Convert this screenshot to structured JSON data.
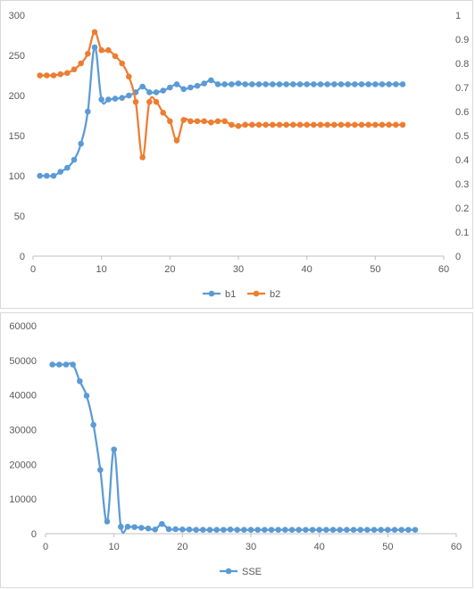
{
  "chart_data": [
    {
      "type": "line",
      "colors": {
        "b1": "#5b9bd5",
        "b2": "#ed7d31"
      },
      "x": [
        1,
        2,
        3,
        4,
        5,
        6,
        7,
        8,
        9,
        10,
        11,
        12,
        13,
        14,
        15,
        16,
        17,
        18,
        19,
        20,
        21,
        22,
        23,
        24,
        25,
        26,
        27,
        28,
        29,
        30,
        31,
        32,
        33,
        34,
        35,
        36,
        37,
        38,
        39,
        40,
        41,
        42,
        43,
        44,
        45,
        46,
        47,
        48,
        49,
        50,
        51,
        52,
        53,
        54
      ],
      "series": [
        {
          "name": "b1",
          "axis": "left",
          "values": [
            100,
            100,
            100,
            105,
            110,
            120,
            140,
            180,
            260,
            195,
            195,
            196,
            197,
            200,
            204,
            211,
            204,
            204,
            206,
            210,
            214,
            208,
            210,
            212,
            215,
            219,
            214,
            214,
            214,
            215,
            214,
            214,
            214,
            214,
            214,
            214,
            214,
            214,
            214,
            214,
            214,
            214,
            214,
            214,
            214,
            214,
            214,
            214,
            214,
            214,
            214,
            214,
            214,
            214
          ]
        },
        {
          "name": "b2",
          "axis": "right",
          "values": [
            0.75,
            0.75,
            0.75,
            0.755,
            0.76,
            0.775,
            0.8,
            0.84,
            0.93,
            0.855,
            0.855,
            0.83,
            0.8,
            0.745,
            0.64,
            0.41,
            0.64,
            0.64,
            0.595,
            0.56,
            0.48,
            0.565,
            0.56,
            0.56,
            0.56,
            0.555,
            0.56,
            0.56,
            0.545,
            0.54,
            0.545,
            0.545,
            0.545,
            0.545,
            0.545,
            0.545,
            0.545,
            0.545,
            0.545,
            0.545,
            0.545,
            0.545,
            0.545,
            0.545,
            0.545,
            0.545,
            0.545,
            0.545,
            0.545,
            0.545,
            0.545,
            0.545,
            0.545,
            0.545
          ]
        }
      ],
      "xlim": [
        0,
        60
      ],
      "ylim": [
        0,
        300
      ],
      "y2lim": [
        0,
        1
      ],
      "xticks": [
        "0",
        "10",
        "20",
        "30",
        "40",
        "50",
        "60"
      ],
      "yticks": [
        "0",
        "50",
        "100",
        "150",
        "200",
        "250",
        "300"
      ],
      "y2ticks": [
        "0",
        "0.1",
        "0.2",
        "0.3",
        "0.4",
        "0.5",
        "0.6",
        "0.7",
        "0.8",
        "0.9",
        "1"
      ],
      "legend": [
        "b1",
        "b2"
      ],
      "legend_position": "bottom",
      "grid": false
    },
    {
      "type": "line",
      "colors": {
        "SSE": "#5b9bd5"
      },
      "x": [
        1,
        2,
        3,
        4,
        5,
        6,
        7,
        8,
        9,
        10,
        11,
        12,
        13,
        14,
        15,
        16,
        17,
        18,
        19,
        20,
        21,
        22,
        23,
        24,
        25,
        26,
        27,
        28,
        29,
        30,
        31,
        32,
        33,
        34,
        35,
        36,
        37,
        38,
        39,
        40,
        41,
        42,
        43,
        44,
        45,
        46,
        47,
        48,
        49,
        50,
        51,
        52,
        53,
        54
      ],
      "series": [
        {
          "name": "SSE",
          "values": [
            48800,
            48800,
            48800,
            48800,
            44000,
            39800,
            31400,
            18400,
            3500,
            24300,
            2000,
            2000,
            1900,
            1700,
            1500,
            1200,
            2800,
            1300,
            1300,
            1200,
            1200,
            1100,
            1100,
            1100,
            1100,
            1100,
            1200,
            1100,
            1100,
            1100,
            1100,
            1100,
            1100,
            1100,
            1100,
            1100,
            1100,
            1100,
            1100,
            1100,
            1100,
            1100,
            1100,
            1100,
            1100,
            1100,
            1100,
            1100,
            1100,
            1100,
            1100,
            1100,
            1100,
            1100
          ]
        }
      ],
      "xlim": [
        0,
        60
      ],
      "ylim": [
        0,
        60000
      ],
      "xticks": [
        "0",
        "10",
        "20",
        "30",
        "40",
        "50",
        "60"
      ],
      "yticks": [
        "0",
        "10000",
        "20000",
        "30000",
        "40000",
        "50000",
        "60000"
      ],
      "legend": [
        "SSE"
      ],
      "legend_position": "bottom",
      "grid": false
    }
  ]
}
